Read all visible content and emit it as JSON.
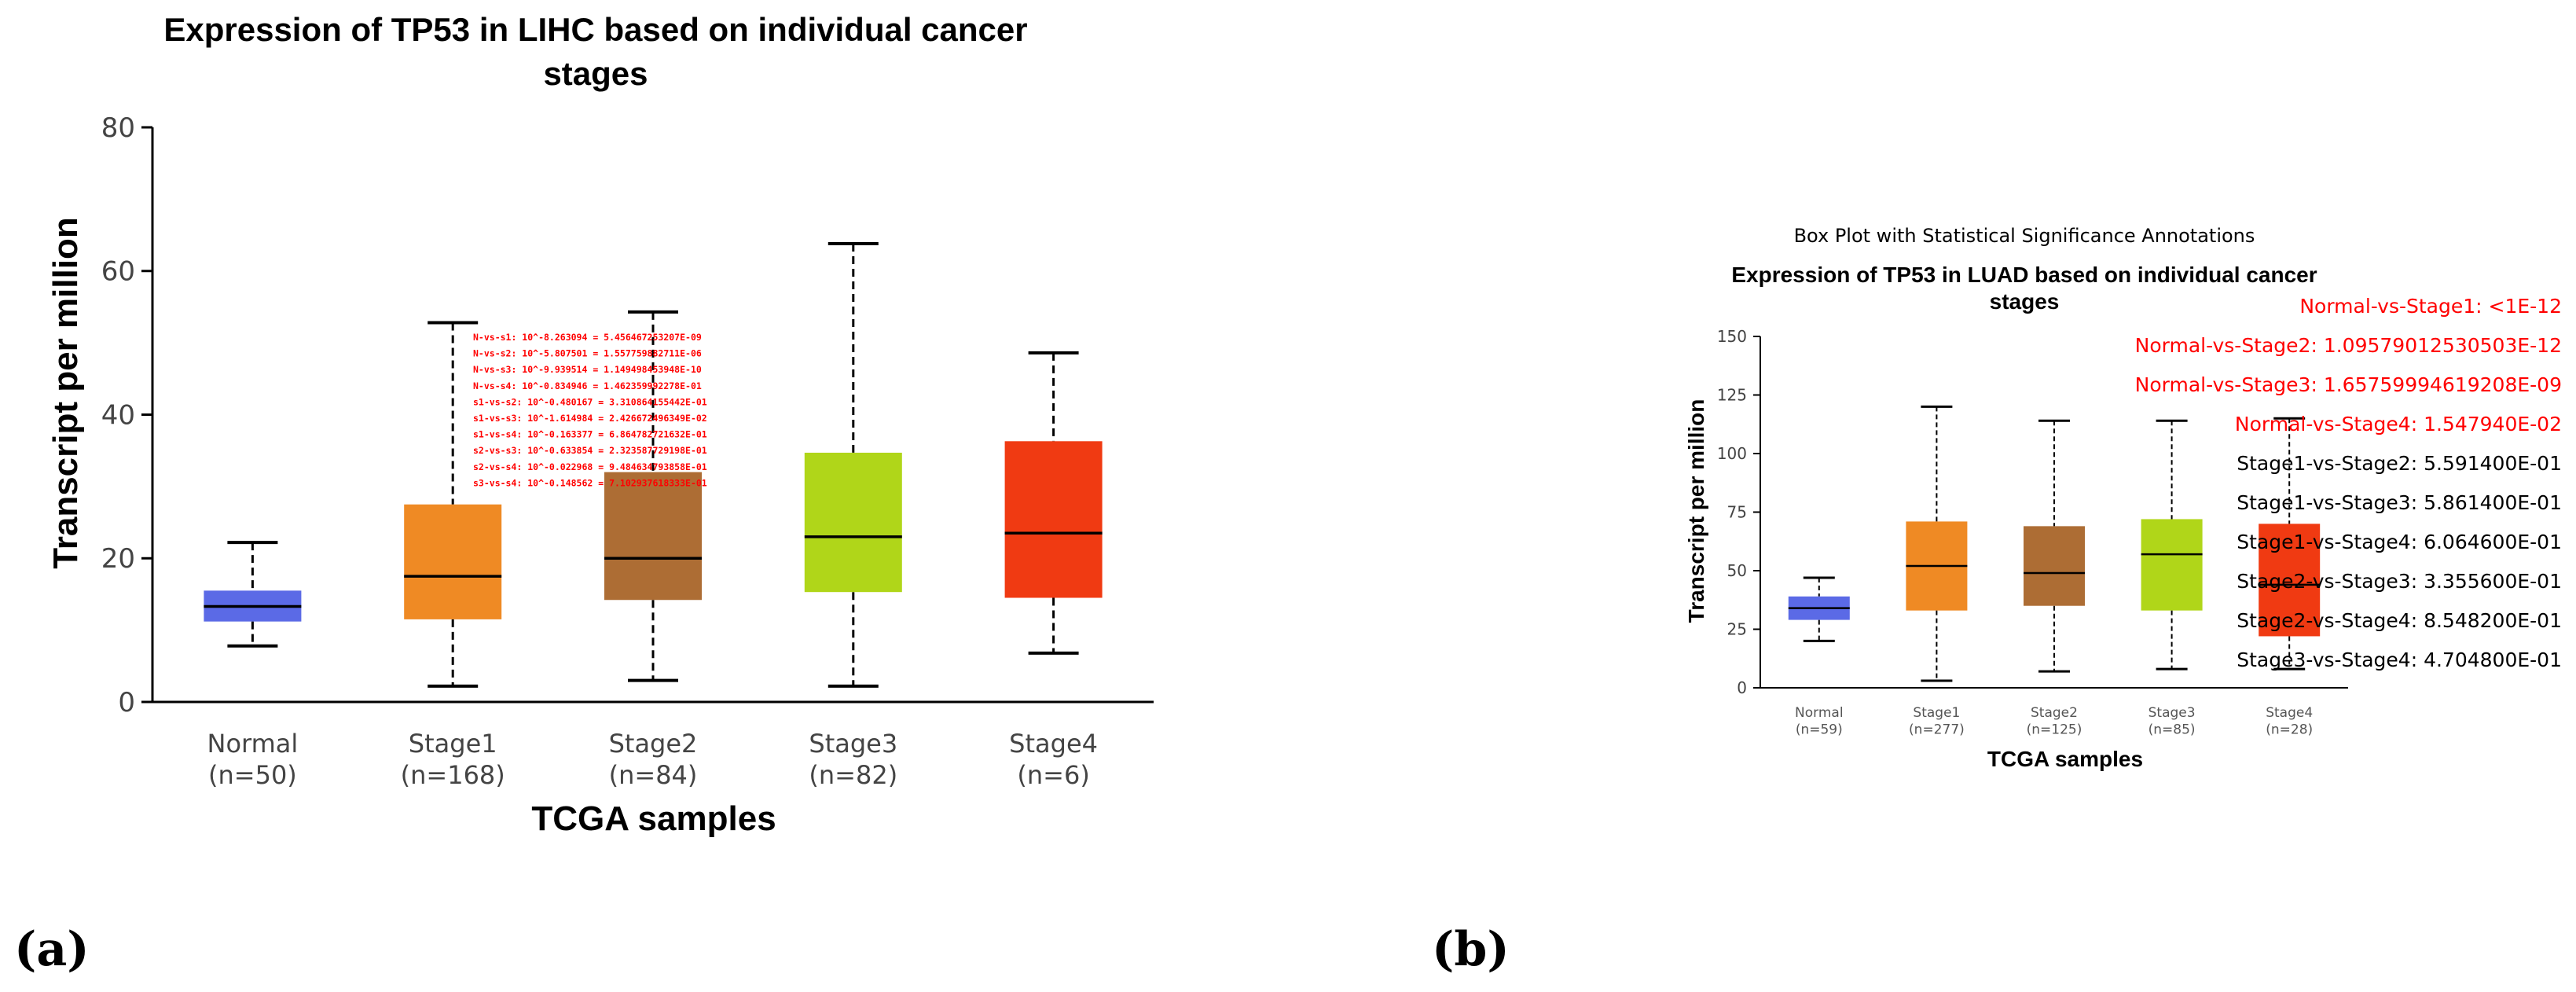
{
  "panel_labels": {
    "a": "(a)",
    "b": "(b)"
  },
  "chart_data": [
    {
      "type": "box",
      "title_line1": "Expression of TP53 in LIHC based on individual cancer",
      "title_line2": "stages",
      "xlabel": "TCGA samples",
      "ylabel": "Transcript per million",
      "ylim": [
        0,
        80
      ],
      "yticks": [
        "0",
        "20",
        "40",
        "60",
        "80"
      ],
      "categories": [
        {
          "name": "Normal",
          "n": "(n=50)",
          "color": "#5b6ae6",
          "min": 7.8,
          "q1": 11.2,
          "median": 13.3,
          "q3": 15.5,
          "max": 22.2
        },
        {
          "name": "Stage1",
          "n": "(n=168)",
          "color": "#ef8a24",
          "min": 2.2,
          "q1": 11.5,
          "median": 17.5,
          "q3": 27.5,
          "max": 52.8
        },
        {
          "name": "Stage2",
          "n": "(n=84)",
          "color": "#ad6d34",
          "min": 3.0,
          "q1": 14.2,
          "median": 20.0,
          "q3": 32.0,
          "max": 54.3
        },
        {
          "name": "Stage3",
          "n": "(n=82)",
          "color": "#b0d619",
          "min": 2.2,
          "q1": 15.3,
          "median": 23.0,
          "q3": 34.7,
          "max": 63.8
        },
        {
          "name": "Stage4",
          "n": "(n=6)",
          "color": "#f03a12",
          "min": 6.8,
          "q1": 14.5,
          "median": 23.5,
          "q3": 36.3,
          "max": 48.6
        }
      ],
      "annotations": [
        "N-vs-s1: 10^-8.263094 = 5.456467253207E-09",
        "N-vs-s2: 10^-5.807501 = 1.557759882711E-06",
        "N-vs-s3: 10^-9.939514 = 1.149498453948E-10",
        "N-vs-s4: 10^-0.834946 = 1.462359992278E-01",
        "s1-vs-s2: 10^-0.480167 = 3.310864155442E-01",
        "s1-vs-s3: 10^-1.614984 = 2.426672496349E-02",
        "s1-vs-s4: 10^-0.163377 = 6.864782721632E-01",
        "s2-vs-s3: 10^-0.633854 = 2.323587729198E-01",
        "s2-vs-s4: 10^-0.022968 = 9.484634793858E-01",
        "s3-vs-s4: 10^-0.148562 = 7.102937618333E-01"
      ],
      "annotation_color": "#ff0000"
    },
    {
      "type": "box",
      "super_title": "Box Plot with Statistical Significance Annotations",
      "title_line1": "Expression of TP53 in LUAD based on individual cancer",
      "title_line2": "stages",
      "xlabel": "TCGA samples",
      "ylabel": "Transcript per million",
      "ylim": [
        0,
        150
      ],
      "yticks": [
        "0",
        "25",
        "50",
        "75",
        "100",
        "125",
        "150"
      ],
      "categories": [
        {
          "name": "Normal",
          "n": "(n=59)",
          "color": "#5b6ae6",
          "min": 20,
          "q1": 29,
          "median": 34,
          "q3": 39,
          "max": 47
        },
        {
          "name": "Stage1",
          "n": "(n=277)",
          "color": "#ef8a24",
          "min": 3,
          "q1": 33,
          "median": 52,
          "q3": 71,
          "max": 120
        },
        {
          "name": "Stage2",
          "n": "(n=125)",
          "color": "#ad6d34",
          "min": 7,
          "q1": 35,
          "median": 49,
          "q3": 69,
          "max": 114
        },
        {
          "name": "Stage3",
          "n": "(n=85)",
          "color": "#b0d619",
          "min": 8,
          "q1": 33,
          "median": 57,
          "q3": 72,
          "max": 114
        },
        {
          "name": "Stage4",
          "n": "(n=28)",
          "color": "#f03a12",
          "min": 8,
          "q1": 22,
          "median": 44,
          "q3": 70,
          "max": 115
        }
      ],
      "annotations": [
        {
          "text": "Normal-vs-Stage1: <1E-12",
          "color": "#ff0000"
        },
        {
          "text": "Normal-vs-Stage2: 1.09579012530503E-12",
          "color": "#ff0000"
        },
        {
          "text": "Normal-vs-Stage3: 1.65759994619208E-09",
          "color": "#ff0000"
        },
        {
          "text": "Normal-vs-Stage4: 1.547940E-02",
          "color": "#ff0000"
        },
        {
          "text": "Stage1-vs-Stage2: 5.591400E-01",
          "color": "#000000"
        },
        {
          "text": "Stage1-vs-Stage3: 5.861400E-01",
          "color": "#000000"
        },
        {
          "text": "Stage1-vs-Stage4: 6.064600E-01",
          "color": "#000000"
        },
        {
          "text": "Stage2-vs-Stage3: 3.355600E-01",
          "color": "#000000"
        },
        {
          "text": "Stage2-vs-Stage4: 8.548200E-01",
          "color": "#000000"
        },
        {
          "text": "Stage3-vs-Stage4: 4.704800E-01",
          "color": "#000000"
        }
      ]
    }
  ]
}
